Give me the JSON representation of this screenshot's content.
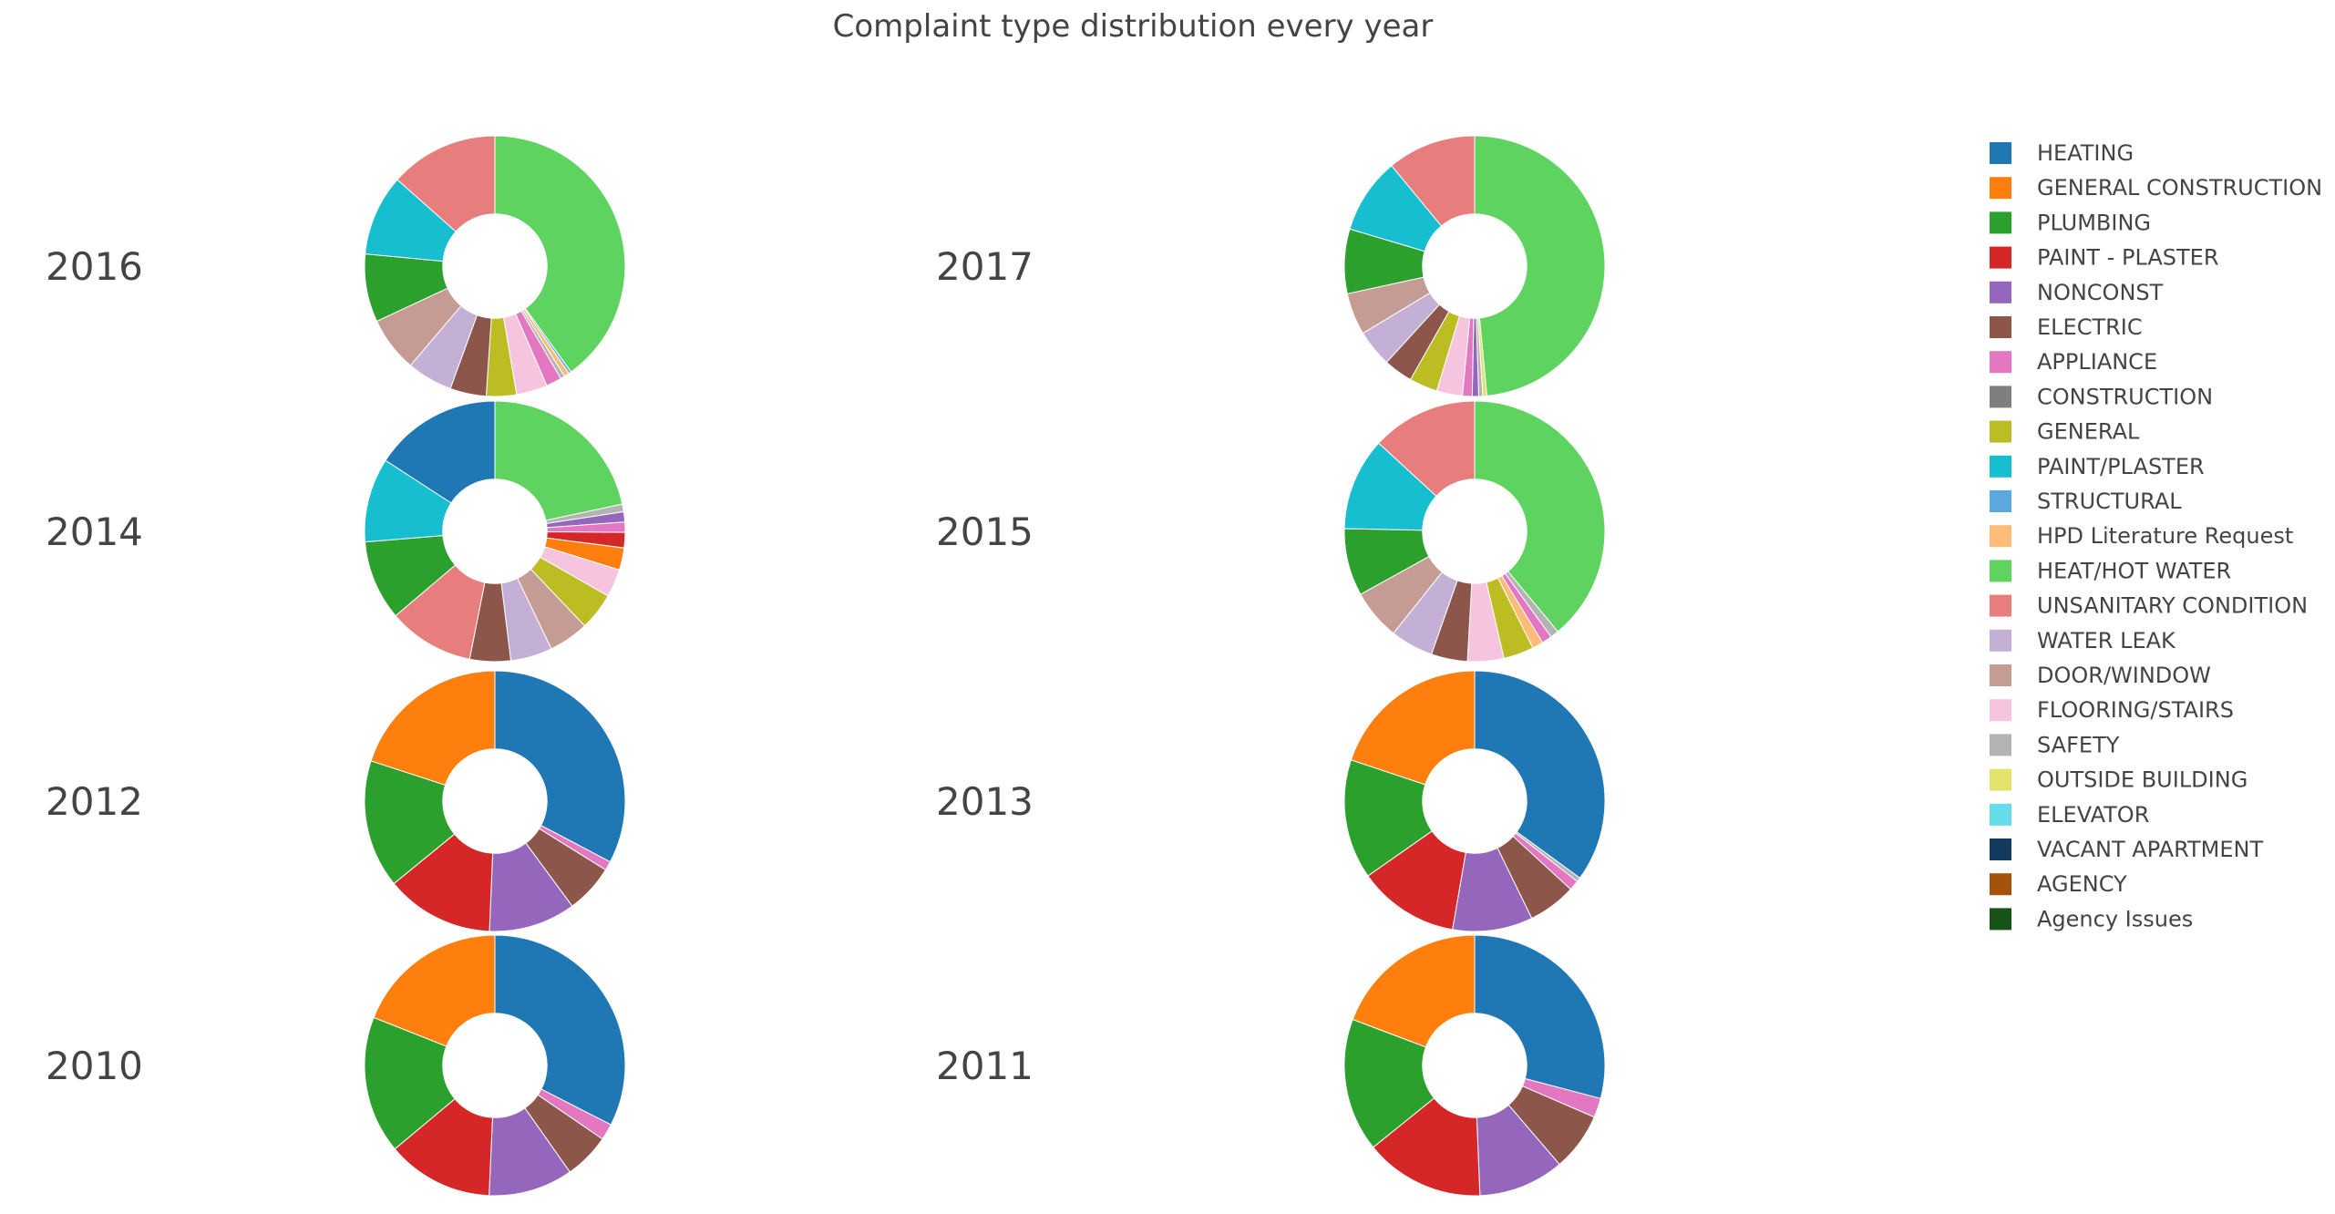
{
  "chart_data": {
    "type": "pie",
    "hole": 0.4,
    "title": "Complaint type distribution every year",
    "legend_position": "right",
    "categories": [
      {
        "name": "HEATING",
        "color": "#1f77b4"
      },
      {
        "name": "GENERAL CONSTRUCTION",
        "color": "#ff7f0e"
      },
      {
        "name": "PLUMBING",
        "color": "#2ca02c"
      },
      {
        "name": "PAINT - PLASTER",
        "color": "#d62728"
      },
      {
        "name": "NONCONST",
        "color": "#9467bd"
      },
      {
        "name": "ELECTRIC",
        "color": "#8c564b"
      },
      {
        "name": "APPLIANCE",
        "color": "#e377c2"
      },
      {
        "name": "CONSTRUCTION",
        "color": "#7f7f7f"
      },
      {
        "name": "GENERAL",
        "color": "#bcbd22"
      },
      {
        "name": "PAINT/PLASTER",
        "color": "#17becf"
      },
      {
        "name": "STRUCTURAL",
        "color": "#5ba8e0"
      },
      {
        "name": "HPD Literature Request",
        "color": "#ffbb78"
      },
      {
        "name": "HEAT/HOT WATER",
        "color": "#5fd35f"
      },
      {
        "name": "UNSANITARY CONDITION",
        "color": "#e87d7d"
      },
      {
        "name": "WATER LEAK",
        "color": "#c5b0d5"
      },
      {
        "name": "DOOR/WINDOW",
        "color": "#c49c94"
      },
      {
        "name": "FLOORING/STAIRS",
        "color": "#f7c4df"
      },
      {
        "name": "SAFETY",
        "color": "#b3b3b3"
      },
      {
        "name": "OUTSIDE BUILDING",
        "color": "#e3e36b"
      },
      {
        "name": "ELEVATOR",
        "color": "#64dcea"
      },
      {
        "name": "VACANT APARTMENT",
        "color": "#133b5f"
      },
      {
        "name": "AGENCY",
        "color": "#a5520b"
      },
      {
        "name": "Agency Issues",
        "color": "#175317"
      }
    ],
    "pies": [
      {
        "year": "2016",
        "slices": [
          {
            "category": "HEAT/HOT WATER",
            "value": 37.5
          },
          {
            "category": "STRUCTURAL",
            "value": 0.3
          },
          {
            "category": "HPD Literature Request",
            "value": 0.6
          },
          {
            "category": "SAFETY",
            "value": 0.5
          },
          {
            "category": "APPLIANCE",
            "value": 1.8
          },
          {
            "category": "FLOORING/STAIRS",
            "value": 3.6
          },
          {
            "category": "GENERAL",
            "value": 3.5
          },
          {
            "category": "ELECTRIC",
            "value": 4.2
          },
          {
            "category": "WATER LEAK",
            "value": 5.3
          },
          {
            "category": "DOOR/WINDOW",
            "value": 6.4
          },
          {
            "category": "PLUMBING",
            "value": 7.9
          },
          {
            "category": "PAINT/PLASTER",
            "value": 9.4
          },
          {
            "category": "UNSANITARY CONDITION",
            "value": 12.6
          }
        ]
      },
      {
        "year": "2017",
        "slices": [
          {
            "category": "HEAT/HOT WATER",
            "value": 48.5
          },
          {
            "category": "OUTSIDE BUILDING",
            "value": 0.5
          },
          {
            "category": "SAFETY",
            "value": 0.5
          },
          {
            "category": "NONCONST",
            "value": 0.8
          },
          {
            "category": "APPLIANCE",
            "value": 1.2
          },
          {
            "category": "FLOORING/STAIRS",
            "value": 3.2
          },
          {
            "category": "GENERAL",
            "value": 3.5
          },
          {
            "category": "ELECTRIC",
            "value": 3.6
          },
          {
            "category": "WATER LEAK",
            "value": 4.6
          },
          {
            "category": "DOOR/WINDOW",
            "value": 5.2
          },
          {
            "category": "PLUMBING",
            "value": 8.0
          },
          {
            "category": "PAINT/PLASTER",
            "value": 9.4
          },
          {
            "category": "UNSANITARY CONDITION",
            "value": 11.0
          }
        ]
      },
      {
        "year": "2014",
        "slices": [
          {
            "category": "HEAT/HOT WATER",
            "value": 20.5
          },
          {
            "category": "SAFETY",
            "value": 0.9
          },
          {
            "category": "NONCONST",
            "value": 1.2
          },
          {
            "category": "APPLIANCE",
            "value": 1.2
          },
          {
            "category": "PAINT - PLASTER",
            "value": 1.8
          },
          {
            "category": "GENERAL CONSTRUCTION",
            "value": 2.6
          },
          {
            "category": "FLOORING/STAIRS",
            "value": 3.3
          },
          {
            "category": "GENERAL",
            "value": 4.4
          },
          {
            "category": "DOOR/WINDOW",
            "value": 4.7
          },
          {
            "category": "WATER LEAK",
            "value": 4.9
          },
          {
            "category": "ELECTRIC",
            "value": 4.8
          },
          {
            "category": "UNSANITARY CONDITION",
            "value": 10.1
          },
          {
            "category": "PLUMBING",
            "value": 9.4
          },
          {
            "category": "PAINT/PLASTER",
            "value": 9.9
          },
          {
            "category": "HEATING",
            "value": 15.0
          }
        ]
      },
      {
        "year": "2015",
        "slices": [
          {
            "category": "HEAT/HOT WATER",
            "value": 37.3
          },
          {
            "category": "SAFETY",
            "value": 1.0
          },
          {
            "category": "APPLIANCE",
            "value": 1.2
          },
          {
            "category": "HPD Literature Request",
            "value": 1.3
          },
          {
            "category": "GENERAL",
            "value": 3.6
          },
          {
            "category": "FLOORING/STAIRS",
            "value": 4.3
          },
          {
            "category": "ELECTRIC",
            "value": 4.3
          },
          {
            "category": "WATER LEAK",
            "value": 5.1
          },
          {
            "category": "DOOR/WINDOW",
            "value": 6.0
          },
          {
            "category": "PLUMBING",
            "value": 8.0
          },
          {
            "category": "PAINT/PLASTER",
            "value": 11.0
          },
          {
            "category": "UNSANITARY CONDITION",
            "value": 12.6
          }
        ]
      },
      {
        "year": "2012",
        "slices": [
          {
            "category": "HEATING",
            "value": 31.9
          },
          {
            "category": "APPLIANCE",
            "value": 1.1
          },
          {
            "category": "ELECTRIC",
            "value": 5.9
          },
          {
            "category": "NONCONST",
            "value": 10.5
          },
          {
            "category": "PAINT - PLASTER",
            "value": 13.1
          },
          {
            "category": "PLUMBING",
            "value": 15.5
          },
          {
            "category": "GENERAL CONSTRUCTION",
            "value": 19.5
          }
        ]
      },
      {
        "year": "2013",
        "slices": [
          {
            "category": "HEATING",
            "value": 33.5
          },
          {
            "category": "SAFETY",
            "value": 0.5
          },
          {
            "category": "APPLIANCE",
            "value": 1.2
          },
          {
            "category": "ELECTRIC",
            "value": 5.7
          },
          {
            "category": "NONCONST",
            "value": 9.5
          },
          {
            "category": "PAINT - PLASTER",
            "value": 12.0
          },
          {
            "category": "PLUMBING",
            "value": 14.2
          },
          {
            "category": "GENERAL CONSTRUCTION",
            "value": 19.0
          }
        ]
      },
      {
        "year": "2010",
        "slices": [
          {
            "category": "HEATING",
            "value": 32.0
          },
          {
            "category": "APPLIANCE",
            "value": 2.0
          },
          {
            "category": "ELECTRIC",
            "value": 5.6
          },
          {
            "category": "NONCONST",
            "value": 10.3
          },
          {
            "category": "PAINT - PLASTER",
            "value": 13.0
          },
          {
            "category": "PLUMBING",
            "value": 16.8
          },
          {
            "category": "GENERAL CONSTRUCTION",
            "value": 18.7
          }
        ]
      },
      {
        "year": "2011",
        "slices": [
          {
            "category": "HEATING",
            "value": 29.0
          },
          {
            "category": "APPLIANCE",
            "value": 2.4
          },
          {
            "category": "ELECTRIC",
            "value": 7.2
          },
          {
            "category": "NONCONST",
            "value": 10.6
          },
          {
            "category": "PAINT - PLASTER",
            "value": 14.8
          },
          {
            "category": "PLUMBING",
            "value": 16.5
          },
          {
            "category": "GENERAL CONSTRUCTION",
            "value": 19.2
          }
        ]
      }
    ]
  }
}
